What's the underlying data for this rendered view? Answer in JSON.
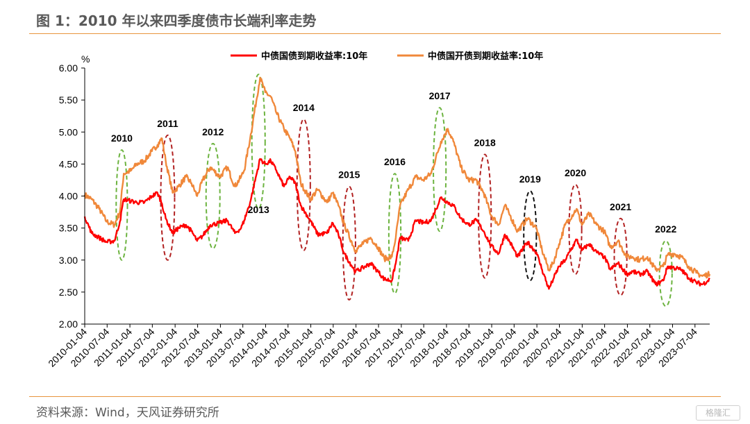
{
  "header": {
    "title": "图 1：2010 年以来四季度债市长端利率走势"
  },
  "footer": {
    "source": "资料来源：Wind，天风证券研究所",
    "watermark": "格隆汇"
  },
  "colors": {
    "cgb": "#ff0000",
    "cdb": "#f0883a",
    "green": "#6cb33f",
    "darkred": "#b22222",
    "black": "#111111",
    "rule": "#e8943c"
  },
  "chart_data": {
    "type": "line",
    "unit": "%",
    "ylim": [
      2.0,
      6.0
    ],
    "yticks": [
      "2.00",
      "2.50",
      "3.00",
      "3.50",
      "4.00",
      "4.50",
      "5.00",
      "5.50",
      "6.00"
    ],
    "xticks": [
      "2010-01-04",
      "2010-07-04",
      "2011-01-04",
      "2011-07-04",
      "2012-01-04",
      "2012-07-04",
      "2013-01-04",
      "2013-07-04",
      "2014-01-04",
      "2014-07-04",
      "2015-01-04",
      "2015-07-04",
      "2016-01-04",
      "2016-07-04",
      "2017-01-04",
      "2017-07-04",
      "2018-01-04",
      "2018-07-04",
      "2019-01-04",
      "2019-07-04",
      "2020-01-04",
      "2020-07-04",
      "2021-01-04",
      "2021-07-04",
      "2022-01-04",
      "2022-07-04",
      "2023-01-04",
      "2023-07-04"
    ],
    "x_range": [
      "2010-01-04",
      "2023-10-31"
    ],
    "legend_position": "top",
    "series": [
      {
        "name": "中债国债到期收益率:10年",
        "color": "#ff0000",
        "points": [
          [
            "2010-01-04",
            3.68
          ],
          [
            "2010-03-01",
            3.42
          ],
          [
            "2010-05-01",
            3.35
          ],
          [
            "2010-07-01",
            3.28
          ],
          [
            "2010-09-01",
            3.3
          ],
          [
            "2010-10-15",
            3.6
          ],
          [
            "2010-11-15",
            3.95
          ],
          [
            "2011-01-15",
            3.92
          ],
          [
            "2011-03-01",
            3.9
          ],
          [
            "2011-05-01",
            3.9
          ],
          [
            "2011-07-01",
            4.0
          ],
          [
            "2011-08-15",
            4.05
          ],
          [
            "2011-09-20",
            3.88
          ],
          [
            "2011-10-20",
            3.65
          ],
          [
            "2011-12-15",
            3.42
          ],
          [
            "2012-02-01",
            3.5
          ],
          [
            "2012-04-01",
            3.55
          ],
          [
            "2012-05-15",
            3.45
          ],
          [
            "2012-06-30",
            3.3
          ],
          [
            "2012-08-15",
            3.38
          ],
          [
            "2012-10-15",
            3.55
          ],
          [
            "2012-12-31",
            3.58
          ],
          [
            "2013-03-01",
            3.62
          ],
          [
            "2013-05-01",
            3.42
          ],
          [
            "2013-06-20",
            3.5
          ],
          [
            "2013-07-15",
            3.62
          ],
          [
            "2013-09-01",
            3.9
          ],
          [
            "2013-11-20",
            4.58
          ],
          [
            "2014-01-01",
            4.5
          ],
          [
            "2014-02-15",
            4.55
          ],
          [
            "2014-04-01",
            4.4
          ],
          [
            "2014-06-01",
            4.15
          ],
          [
            "2014-07-20",
            4.3
          ],
          [
            "2014-09-01",
            4.2
          ],
          [
            "2014-10-15",
            3.85
          ],
          [
            "2014-12-31",
            3.62
          ],
          [
            "2015-03-01",
            3.4
          ],
          [
            "2015-05-15",
            3.42
          ],
          [
            "2015-06-30",
            3.58
          ],
          [
            "2015-08-15",
            3.4
          ],
          [
            "2015-10-01",
            3.1
          ],
          [
            "2015-12-31",
            2.82
          ],
          [
            "2016-03-01",
            2.88
          ],
          [
            "2016-05-01",
            2.95
          ],
          [
            "2016-07-01",
            2.82
          ],
          [
            "2016-08-20",
            2.7
          ],
          [
            "2016-10-20",
            2.68
          ],
          [
            "2016-11-20",
            2.95
          ],
          [
            "2016-12-25",
            3.35
          ],
          [
            "2017-03-01",
            3.3
          ],
          [
            "2017-05-01",
            3.62
          ],
          [
            "2017-07-01",
            3.58
          ],
          [
            "2017-09-01",
            3.62
          ],
          [
            "2017-11-20",
            3.98
          ],
          [
            "2018-01-15",
            3.9
          ],
          [
            "2018-03-01",
            3.85
          ],
          [
            "2018-05-01",
            3.65
          ],
          [
            "2018-07-01",
            3.55
          ],
          [
            "2018-09-01",
            3.62
          ],
          [
            "2018-11-01",
            3.45
          ],
          [
            "2018-12-31",
            3.22
          ],
          [
            "2019-03-01",
            3.1
          ],
          [
            "2019-04-20",
            3.4
          ],
          [
            "2019-06-01",
            3.28
          ],
          [
            "2019-08-01",
            3.05
          ],
          [
            "2019-10-20",
            3.28
          ],
          [
            "2019-12-31",
            3.12
          ],
          [
            "2020-02-15",
            2.85
          ],
          [
            "2020-04-10",
            2.55
          ],
          [
            "2020-05-15",
            2.7
          ],
          [
            "2020-07-01",
            2.9
          ],
          [
            "2020-08-20",
            3.0
          ],
          [
            "2020-11-20",
            3.32
          ],
          [
            "2021-01-01",
            3.15
          ],
          [
            "2021-03-01",
            3.25
          ],
          [
            "2021-05-01",
            3.12
          ],
          [
            "2021-07-01",
            3.05
          ],
          [
            "2021-08-20",
            2.85
          ],
          [
            "2021-10-20",
            2.95
          ],
          [
            "2021-12-31",
            2.78
          ],
          [
            "2022-02-15",
            2.82
          ],
          [
            "2022-04-15",
            2.78
          ],
          [
            "2022-06-15",
            2.82
          ],
          [
            "2022-08-20",
            2.62
          ],
          [
            "2022-10-20",
            2.68
          ],
          [
            "2022-11-25",
            2.9
          ],
          [
            "2023-01-15",
            2.88
          ],
          [
            "2023-03-15",
            2.85
          ],
          [
            "2023-05-15",
            2.72
          ],
          [
            "2023-07-15",
            2.65
          ],
          [
            "2023-09-01",
            2.62
          ],
          [
            "2023-10-31",
            2.7
          ]
        ]
      },
      {
        "name": "中债国开债到期收益率:10年",
        "color": "#f0883a",
        "points": [
          [
            "2010-01-04",
            4.02
          ],
          [
            "2010-03-01",
            3.95
          ],
          [
            "2010-05-01",
            3.8
          ],
          [
            "2010-07-01",
            3.6
          ],
          [
            "2010-09-01",
            3.55
          ],
          [
            "2010-10-15",
            3.75
          ],
          [
            "2010-11-15",
            4.35
          ],
          [
            "2011-01-15",
            4.4
          ],
          [
            "2011-03-01",
            4.5
          ],
          [
            "2011-05-01",
            4.55
          ],
          [
            "2011-07-01",
            4.7
          ],
          [
            "2011-08-15",
            4.8
          ],
          [
            "2011-09-20",
            4.9
          ],
          [
            "2011-10-20",
            4.55
          ],
          [
            "2011-12-15",
            4.05
          ],
          [
            "2012-02-01",
            4.15
          ],
          [
            "2012-04-01",
            4.3
          ],
          [
            "2012-05-15",
            4.2
          ],
          [
            "2012-06-30",
            4.0
          ],
          [
            "2012-08-15",
            4.25
          ],
          [
            "2012-10-15",
            4.45
          ],
          [
            "2012-12-31",
            4.3
          ],
          [
            "2013-03-01",
            4.45
          ],
          [
            "2013-05-01",
            4.15
          ],
          [
            "2013-06-20",
            4.3
          ],
          [
            "2013-07-15",
            4.4
          ],
          [
            "2013-09-01",
            4.9
          ],
          [
            "2013-11-20",
            5.85
          ],
          [
            "2014-01-01",
            5.62
          ],
          [
            "2014-02-15",
            5.55
          ],
          [
            "2014-04-01",
            5.3
          ],
          [
            "2014-06-01",
            5.05
          ],
          [
            "2014-07-20",
            4.9
          ],
          [
            "2014-09-01",
            4.7
          ],
          [
            "2014-10-15",
            4.2
          ],
          [
            "2014-12-31",
            3.95
          ],
          [
            "2015-03-01",
            4.1
          ],
          [
            "2015-05-15",
            3.9
          ],
          [
            "2015-06-30",
            4.05
          ],
          [
            "2015-08-15",
            3.85
          ],
          [
            "2015-10-01",
            3.55
          ],
          [
            "2015-12-31",
            3.15
          ],
          [
            "2016-03-01",
            3.25
          ],
          [
            "2016-05-01",
            3.35
          ],
          [
            "2016-07-01",
            3.2
          ],
          [
            "2016-08-20",
            3.02
          ],
          [
            "2016-10-20",
            3.05
          ],
          [
            "2016-11-20",
            3.35
          ],
          [
            "2016-12-25",
            3.85
          ],
          [
            "2017-03-01",
            4.1
          ],
          [
            "2017-05-01",
            4.3
          ],
          [
            "2017-07-01",
            4.25
          ],
          [
            "2017-09-01",
            4.35
          ],
          [
            "2017-11-20",
            4.85
          ],
          [
            "2018-01-15",
            5.05
          ],
          [
            "2018-03-01",
            4.85
          ],
          [
            "2018-05-01",
            4.45
          ],
          [
            "2018-07-01",
            4.25
          ],
          [
            "2018-09-01",
            4.25
          ],
          [
            "2018-11-01",
            4.05
          ],
          [
            "2018-12-31",
            3.7
          ],
          [
            "2019-03-01",
            3.55
          ],
          [
            "2019-04-20",
            3.85
          ],
          [
            "2019-06-01",
            3.7
          ],
          [
            "2019-08-01",
            3.45
          ],
          [
            "2019-10-20",
            3.65
          ],
          [
            "2019-12-31",
            3.5
          ],
          [
            "2020-02-15",
            3.15
          ],
          [
            "2020-04-10",
            2.85
          ],
          [
            "2020-05-15",
            2.95
          ],
          [
            "2020-07-01",
            3.25
          ],
          [
            "2020-08-20",
            3.55
          ],
          [
            "2020-11-20",
            3.8
          ],
          [
            "2021-01-01",
            3.55
          ],
          [
            "2021-03-01",
            3.72
          ],
          [
            "2021-05-01",
            3.55
          ],
          [
            "2021-07-01",
            3.45
          ],
          [
            "2021-08-20",
            3.2
          ],
          [
            "2021-10-20",
            3.3
          ],
          [
            "2021-12-31",
            3.05
          ],
          [
            "2022-02-15",
            3.05
          ],
          [
            "2022-04-15",
            3.0
          ],
          [
            "2022-06-15",
            3.05
          ],
          [
            "2022-08-20",
            2.85
          ],
          [
            "2022-10-20",
            2.9
          ],
          [
            "2022-11-25",
            3.08
          ],
          [
            "2023-01-15",
            3.1
          ],
          [
            "2023-03-15",
            3.05
          ],
          [
            "2023-05-15",
            2.9
          ],
          [
            "2023-07-15",
            2.8
          ],
          [
            "2023-09-01",
            2.75
          ],
          [
            "2023-10-31",
            2.78
          ]
        ]
      }
    ],
    "annotations": [
      {
        "label": "2010",
        "color": "green",
        "start": "2010-09-15",
        "end": "2010-12-15",
        "ymin": 3.0,
        "ymax": 4.72,
        "label_pos": "above"
      },
      {
        "label": "2011",
        "color": "darkred",
        "start": "2011-09-10",
        "end": "2011-12-31",
        "ymin": 3.0,
        "ymax": 4.95,
        "label_pos": "above"
      },
      {
        "label": "2012",
        "color": "green",
        "start": "2012-09-10",
        "end": "2012-12-31",
        "ymin": 3.18,
        "ymax": 4.82,
        "label_pos": "above"
      },
      {
        "label": "2013",
        "color": "green",
        "start": "2013-09-15",
        "end": "2013-12-31",
        "ymin": 3.8,
        "ymax": 5.9,
        "label_pos": "below"
      },
      {
        "label": "2014",
        "color": "darkred",
        "start": "2014-09-15",
        "end": "2014-12-31",
        "ymin": 3.15,
        "ymax": 5.2,
        "label_pos": "above"
      },
      {
        "label": "2015",
        "color": "darkred",
        "start": "2015-09-20",
        "end": "2015-12-31",
        "ymin": 2.38,
        "ymax": 4.15,
        "label_pos": "above"
      },
      {
        "label": "2016",
        "color": "green",
        "start": "2016-09-25",
        "end": "2016-12-31",
        "ymin": 2.48,
        "ymax": 4.35,
        "label_pos": "above"
      },
      {
        "label": "2017",
        "color": "green",
        "start": "2017-09-20",
        "end": "2017-12-31",
        "ymin": 3.45,
        "ymax": 5.38,
        "label_pos": "above"
      },
      {
        "label": "2018",
        "color": "darkred",
        "start": "2018-09-20",
        "end": "2018-12-31",
        "ymin": 2.72,
        "ymax": 4.65,
        "label_pos": "above"
      },
      {
        "label": "2019",
        "color": "black",
        "start": "2019-09-20",
        "end": "2019-12-31",
        "ymin": 2.68,
        "ymax": 4.08,
        "label_pos": "above"
      },
      {
        "label": "2020",
        "color": "darkred",
        "start": "2020-09-20",
        "end": "2020-12-31",
        "ymin": 2.78,
        "ymax": 4.18,
        "label_pos": "above"
      },
      {
        "label": "2021",
        "color": "darkred",
        "start": "2021-09-20",
        "end": "2021-12-31",
        "ymin": 2.45,
        "ymax": 3.65,
        "label_pos": "above"
      },
      {
        "label": "2022",
        "color": "green",
        "start": "2022-09-20",
        "end": "2022-12-31",
        "ymin": 2.28,
        "ymax": 3.3,
        "label_pos": "above"
      }
    ]
  }
}
